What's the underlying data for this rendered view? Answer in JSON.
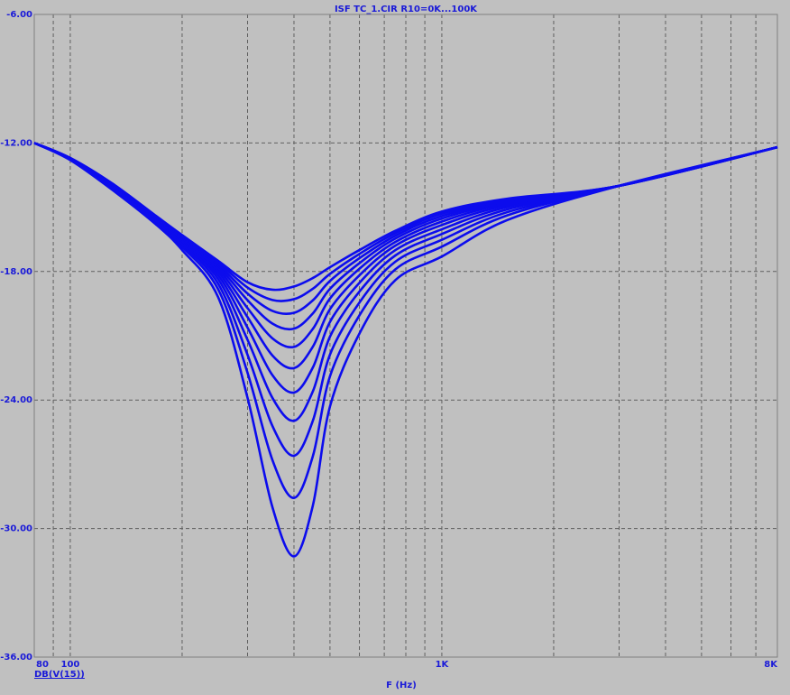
{
  "chart_data": {
    "type": "line",
    "title": "ISF TC_1.CIR R10=0K...100K",
    "x_label": "F (Hz)",
    "y_label": "DB(V(15))",
    "x": [
      80,
      100,
      130,
      170,
      200,
      250,
      300,
      350,
      400,
      450,
      500,
      600,
      750,
      1000,
      1500,
      3000,
      8000
    ],
    "xscale": "log",
    "xlim": [
      80,
      8000
    ],
    "xticks": [
      80,
      100,
      {
        "value": 1000,
        "label": "1K"
      },
      {
        "value": 8000,
        "label": "8K"
      }
    ],
    "xgrid": [
      90,
      200,
      300,
      400,
      500,
      600,
      700,
      800,
      900,
      2000,
      3000,
      4000,
      5000,
      6000,
      7000
    ],
    "ylim": [
      -36,
      -6
    ],
    "yticks": [
      {
        "value": -36,
        "label": "-36.00"
      },
      {
        "value": -30,
        "label": "-30.00"
      },
      {
        "value": -24,
        "label": "-24.00"
      },
      {
        "value": -18,
        "label": "-18.00"
      },
      {
        "value": -12,
        "label": "-12.00"
      },
      {
        "value": -6,
        "label": "-6.00"
      }
    ],
    "grid": true,
    "series": [
      {
        "color": "#0c0ced",
        "values": [
          -12.0,
          -12.7,
          -13.9,
          -15.4,
          -16.3,
          -17.5,
          -18.5,
          -18.85,
          -18.7,
          -18.3,
          -17.8,
          -17.0,
          -16.1,
          -15.2,
          -14.6,
          -14.0,
          -12.2
        ]
      },
      {
        "color": "#0c0ced",
        "values": [
          -12.0,
          -12.7,
          -13.91,
          -15.42,
          -16.33,
          -17.58,
          -18.75,
          -19.33,
          -19.29,
          -18.8,
          -18.11,
          -17.18,
          -16.21,
          -15.3,
          -14.65,
          -14.0,
          -12.2
        ]
      },
      {
        "color": "#0c0ced",
        "values": [
          -12.0,
          -12.71,
          -13.93,
          -15.44,
          -16.37,
          -17.67,
          -19.03,
          -19.84,
          -19.93,
          -19.34,
          -18.44,
          -17.38,
          -16.33,
          -15.41,
          -14.7,
          -14.0,
          -12.2
        ]
      },
      {
        "color": "#0c0ced",
        "values": [
          -12.0,
          -12.72,
          -13.95,
          -15.46,
          -16.41,
          -17.77,
          -19.34,
          -20.43,
          -20.67,
          -19.95,
          -18.81,
          -17.61,
          -16.46,
          -15.53,
          -14.76,
          -14.0,
          -12.2
        ]
      },
      {
        "color": "#0c0ced",
        "values": [
          -12.0,
          -12.72,
          -13.97,
          -15.49,
          -16.46,
          -17.88,
          -19.71,
          -21.12,
          -21.52,
          -20.67,
          -19.26,
          -17.87,
          -16.62,
          -15.67,
          -14.82,
          -14.0,
          -12.2
        ]
      },
      {
        "color": "#0c0ced",
        "values": [
          -12.0,
          -12.73,
          -13.99,
          -15.52,
          -16.51,
          -18.01,
          -20.13,
          -21.92,
          -22.51,
          -21.5,
          -19.76,
          -18.18,
          -16.79,
          -15.83,
          -14.9,
          -14.0,
          -12.2
        ]
      },
      {
        "color": "#0c0ced",
        "values": [
          -12.0,
          -12.74,
          -14.02,
          -15.56,
          -16.58,
          -18.17,
          -20.62,
          -22.84,
          -23.65,
          -22.47,
          -20.35,
          -18.53,
          -17.0,
          -16.03,
          -14.99,
          -14.0,
          -12.2
        ]
      },
      {
        "color": "#0c0ced",
        "values": [
          -12.0,
          -12.75,
          -14.05,
          -15.6,
          -16.65,
          -18.35,
          -21.19,
          -23.9,
          -24.97,
          -23.58,
          -21.04,
          -18.94,
          -17.25,
          -16.25,
          -15.1,
          -14.0,
          -12.2
        ]
      },
      {
        "color": "#0c0ced",
        "values": [
          -12.0,
          -12.76,
          -14.09,
          -15.65,
          -16.74,
          -18.57,
          -21.89,
          -25.21,
          -26.6,
          -24.95,
          -21.88,
          -19.45,
          -17.54,
          -16.52,
          -15.23,
          -14.0,
          -12.2
        ]
      },
      {
        "color": "#0c0ced",
        "values": [
          -12.0,
          -12.78,
          -14.13,
          -15.71,
          -16.85,
          -18.83,
          -22.73,
          -26.8,
          -28.57,
          -26.6,
          -22.89,
          -20.05,
          -17.9,
          -16.84,
          -15.38,
          -14.0,
          -12.2
        ]
      },
      {
        "color": "#0c0ced",
        "values": [
          -12.0,
          -12.8,
          -14.2,
          -15.8,
          -17.0,
          -19.2,
          -23.9,
          -29.0,
          -31.3,
          -28.9,
          -24.3,
          -20.9,
          -18.4,
          -17.3,
          -15.6,
          -14.0,
          -12.2
        ]
      }
    ]
  }
}
